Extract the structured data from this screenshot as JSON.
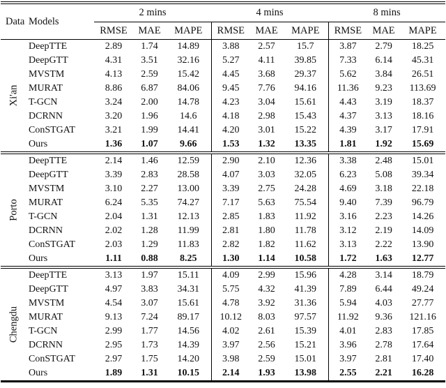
{
  "table": {
    "header": {
      "data": "Data",
      "models": "Models",
      "groups": [
        "2 mins",
        "4 mins",
        "8 mins"
      ],
      "metrics": [
        "RMSE",
        "MAE",
        "MAPE"
      ]
    },
    "blocks": [
      {
        "dataset": "Xi'an",
        "rows": [
          {
            "model": "DeepTTE",
            "bold": false,
            "values": [
              "2.89",
              "1.74",
              "14.89",
              "3.88",
              "2.57",
              "15.7",
              "3.87",
              "2.79",
              "18.25"
            ]
          },
          {
            "model": "DeepGTT",
            "bold": false,
            "values": [
              "4.31",
              "3.51",
              "32.16",
              "5.27",
              "4.11",
              "39.85",
              "7.33",
              "6.14",
              "45.31"
            ]
          },
          {
            "model": "MVSTM",
            "bold": false,
            "values": [
              "4.13",
              "2.59",
              "15.42",
              "4.45",
              "3.68",
              "29.37",
              "5.62",
              "3.84",
              "26.51"
            ]
          },
          {
            "model": "MURAT",
            "bold": false,
            "values": [
              "8.86",
              "6.87",
              "84.06",
              "9.45",
              "7.76",
              "94.16",
              "11.36",
              "9.23",
              "113.69"
            ]
          },
          {
            "model": "T-GCN",
            "bold": false,
            "values": [
              "3.24",
              "2.00",
              "14.78",
              "4.23",
              "3.04",
              "15.61",
              "4.43",
              "3.19",
              "18.37"
            ]
          },
          {
            "model": "DCRNN",
            "bold": false,
            "values": [
              "3.20",
              "1.96",
              "14.6",
              "4.18",
              "2.98",
              "15.43",
              "4.37",
              "3.13",
              "18.16"
            ]
          },
          {
            "model": "ConSTGAT",
            "bold": false,
            "values": [
              "3.21",
              "1.99",
              "14.41",
              "4.20",
              "3.01",
              "15.22",
              "4.39",
              "3.17",
              "17.91"
            ]
          },
          {
            "model": "Ours",
            "bold": true,
            "values": [
              "1.36",
              "1.07",
              "9.66",
              "1.53",
              "1.32",
              "13.35",
              "1.81",
              "1.92",
              "15.69"
            ]
          }
        ]
      },
      {
        "dataset": "Porto",
        "rows": [
          {
            "model": "DeepTTE",
            "bold": false,
            "values": [
              "2.14",
              "1.46",
              "12.59",
              "2.90",
              "2.10",
              "12.36",
              "3.38",
              "2.48",
              "15.01"
            ]
          },
          {
            "model": "DeepGTT",
            "bold": false,
            "values": [
              "3.39",
              "2.83",
              "28.58",
              "4.07",
              "3.03",
              "32.05",
              "6.23",
              "5.08",
              "39.34"
            ]
          },
          {
            "model": "MVSTM",
            "bold": false,
            "values": [
              "3.10",
              "2.27",
              "13.00",
              "3.39",
              "2.75",
              "24.28",
              "4.69",
              "3.18",
              "22.18"
            ]
          },
          {
            "model": "MURAT",
            "bold": false,
            "values": [
              "6.24",
              "5.35",
              "74.27",
              "7.17",
              "5.63",
              "75.54",
              "9.40",
              "7.39",
              "96.79"
            ]
          },
          {
            "model": "T-GCN",
            "bold": false,
            "values": [
              "2.04",
              "1.31",
              "12.13",
              "2.85",
              "1.83",
              "11.92",
              "3.16",
              "2.23",
              "14.26"
            ]
          },
          {
            "model": "DCRNN",
            "bold": false,
            "values": [
              "2.02",
              "1.28",
              "11.99",
              "2.81",
              "1.80",
              "11.78",
              "3.12",
              "2.19",
              "14.09"
            ]
          },
          {
            "model": "ConSTGAT",
            "bold": false,
            "values": [
              "2.03",
              "1.29",
              "11.83",
              "2.82",
              "1.82",
              "11.62",
              "3.13",
              "2.22",
              "13.90"
            ]
          },
          {
            "model": "Ours",
            "bold": true,
            "values": [
              "1.11",
              "0.88",
              "8.25",
              "1.30",
              "1.14",
              "10.58",
              "1.72",
              "1.63",
              "12.77"
            ]
          }
        ]
      },
      {
        "dataset": "Chengdu",
        "rows": [
          {
            "model": "DeepTTE",
            "bold": false,
            "values": [
              "3.13",
              "1.97",
              "15.11",
              "4.09",
              "2.99",
              "15.96",
              "4.28",
              "3.14",
              "18.79"
            ]
          },
          {
            "model": "DeepGTT",
            "bold": false,
            "values": [
              "4.97",
              "3.83",
              "34.31",
              "5.75",
              "4.32",
              "41.39",
              "7.89",
              "6.44",
              "49.24"
            ]
          },
          {
            "model": "MVSTM",
            "bold": false,
            "values": [
              "4.54",
              "3.07",
              "15.61",
              "4.78",
              "3.92",
              "31.36",
              "5.94",
              "4.03",
              "27.77"
            ]
          },
          {
            "model": "MURAT",
            "bold": false,
            "values": [
              "9.13",
              "7.24",
              "89.17",
              "10.12",
              "8.03",
              "97.57",
              "11.92",
              "9.36",
              "121.16"
            ]
          },
          {
            "model": "T-GCN",
            "bold": false,
            "values": [
              "2.99",
              "1.77",
              "14.56",
              "4.02",
              "2.61",
              "15.39",
              "4.01",
              "2.83",
              "17.85"
            ]
          },
          {
            "model": "DCRNN",
            "bold": false,
            "values": [
              "2.95",
              "1.73",
              "14.39",
              "3.97",
              "2.56",
              "15.21",
              "3.96",
              "2.78",
              "17.64"
            ]
          },
          {
            "model": "ConSTGAT",
            "bold": false,
            "values": [
              "2.97",
              "1.75",
              "14.20",
              "3.98",
              "2.59",
              "15.01",
              "3.97",
              "2.81",
              "17.40"
            ]
          },
          {
            "model": "Ours",
            "bold": true,
            "values": [
              "1.89",
              "1.31",
              "10.15",
              "2.14",
              "1.93",
              "13.98",
              "2.55",
              "2.21",
              "16.28"
            ]
          }
        ]
      }
    ]
  },
  "colors": {
    "text": "#111111",
    "background": "#ffffff",
    "rule": "#000000"
  }
}
